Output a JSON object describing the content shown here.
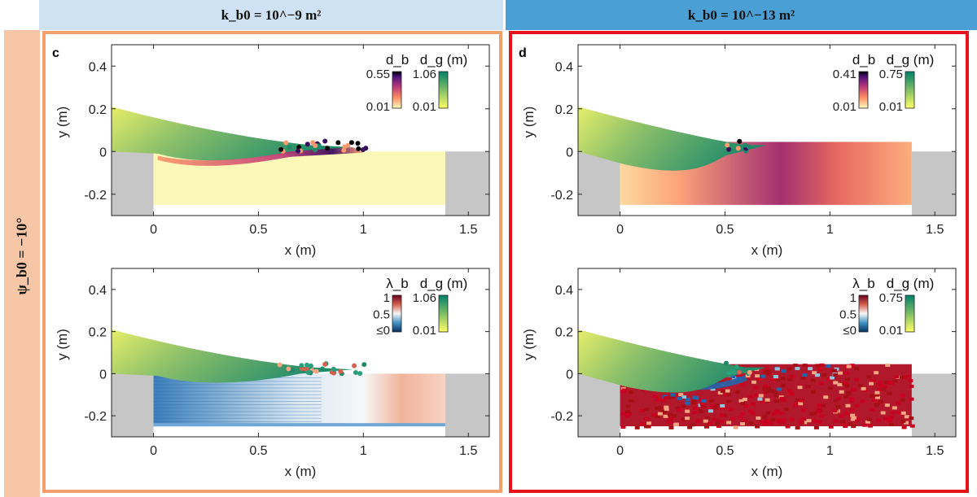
{
  "headers": {
    "left": "k_b0 = 10^−9 m²",
    "right": "k_b0 = 10^−13 m²"
  },
  "side_label": "ψ_b0 = −10°",
  "panel_labels": {
    "c": "c",
    "d": "d"
  },
  "colors": {
    "left_header": "#cfe2f3",
    "right_header": "#4a9fd4",
    "side": "#f6c6a6",
    "frame_c": "#f4a06c",
    "frame_d": "#e8141c",
    "wall": "#c6c6c6"
  },
  "chart_data": [
    {
      "id": "c-top",
      "type": "scatter",
      "xlabel": "x (m)",
      "ylabel": "y (m)",
      "xlim": [
        -0.2,
        1.6
      ],
      "ylim": [
        -0.3,
        0.5
      ],
      "xticks": [
        0,
        0.5,
        1,
        1.5
      ],
      "xtick_labels": [
        "0",
        "0.5",
        "1",
        "1.5"
      ],
      "yticks": [
        -0.2,
        0,
        0.2,
        0.4
      ],
      "ytick_labels": [
        "-0.2",
        "0",
        "0.2",
        "0.4"
      ],
      "colorbars": [
        {
          "title": "d_b",
          "max_label": "0.55",
          "min_label": "0.01",
          "map": "magma"
        },
        {
          "title": "d_g (m)",
          "max_label": "1.06",
          "min_label": "0.01",
          "map": "summer"
        }
      ]
    },
    {
      "id": "c-bot",
      "type": "scatter",
      "xlabel": "x (m)",
      "ylabel": "y (m)",
      "xlim": [
        -0.2,
        1.6
      ],
      "ylim": [
        -0.3,
        0.5
      ],
      "xticks": [
        0,
        0.5,
        1,
        1.5
      ],
      "xtick_labels": [
        "0",
        "0.5",
        "1",
        "1.5"
      ],
      "yticks": [
        -0.2,
        0,
        0.2,
        0.4
      ],
      "ytick_labels": [
        "-0.2",
        "0",
        "0.2",
        "0.4"
      ],
      "colorbars": [
        {
          "title": "λ_b",
          "max_label": "1",
          "mid_label": "0.5",
          "min_label": "≤0",
          "map": "rdbu"
        },
        {
          "title": "d_g (m)",
          "max_label": "1.06",
          "min_label": "0.01",
          "map": "summer"
        }
      ]
    },
    {
      "id": "d-top",
      "type": "scatter",
      "xlabel": "x (m)",
      "ylabel": "y (m)",
      "xlim": [
        -0.2,
        1.6
      ],
      "ylim": [
        -0.3,
        0.5
      ],
      "xticks": [
        0,
        0.5,
        1,
        1.5
      ],
      "xtick_labels": [
        "0",
        "0.5",
        "1",
        "1.5"
      ],
      "yticks": [
        -0.2,
        0,
        0.2,
        0.4
      ],
      "ytick_labels": [
        "-0.2",
        "0",
        "0.2",
        "0.4"
      ],
      "colorbars": [
        {
          "title": "d_b",
          "max_label": "0.41",
          "min_label": "0.01",
          "map": "magma"
        },
        {
          "title": "d_g (m)",
          "max_label": "0.75",
          "min_label": "0.01",
          "map": "summer"
        }
      ]
    },
    {
      "id": "d-bot",
      "type": "scatter",
      "xlabel": "x (m)",
      "ylabel": "y (m)",
      "xlim": [
        -0.2,
        1.6
      ],
      "ylim": [
        -0.3,
        0.5
      ],
      "xticks": [
        0,
        0.5,
        1,
        1.5
      ],
      "xtick_labels": [
        "0",
        "0.5",
        "1",
        "1.5"
      ],
      "yticks": [
        -0.2,
        0,
        0.2,
        0.4
      ],
      "ytick_labels": [
        "-0.2",
        "0",
        "0.2",
        "0.4"
      ],
      "colorbars": [
        {
          "title": "λ_b",
          "max_label": "1",
          "mid_label": "0.5",
          "min_label": "≤0",
          "map": "rdbu"
        },
        {
          "title": "d_g (m)",
          "max_label": "0.75",
          "min_label": "0.01",
          "map": "summer"
        }
      ]
    }
  ]
}
